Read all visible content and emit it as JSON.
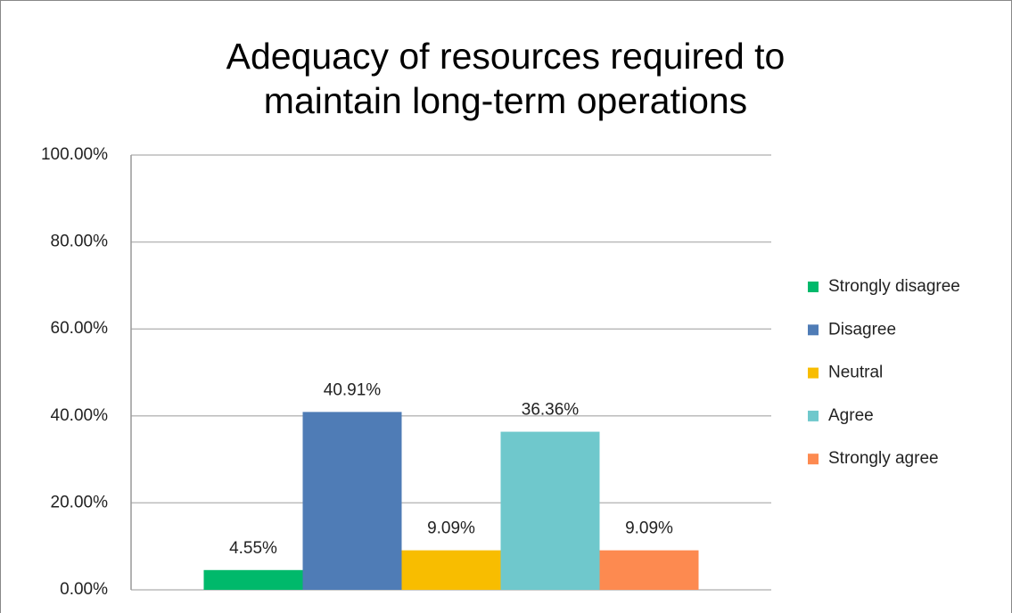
{
  "chart_data": {
    "type": "bar",
    "title": "Adequacy of resources required to maintain long-term operations",
    "categories": [
      null
    ],
    "series": [
      {
        "name": "Strongly disagree",
        "color": "#00b96b",
        "values": [
          4.55
        ],
        "value_labels": [
          "4.55%"
        ]
      },
      {
        "name": "Disagree",
        "color": "#4f7cb6",
        "values": [
          40.91
        ],
        "value_labels": [
          "40.91%"
        ]
      },
      {
        "name": "Neutral",
        "color": "#f8bd00",
        "values": [
          9.09
        ],
        "value_labels": [
          "9.09%"
        ]
      },
      {
        "name": "Agree",
        "color": "#6fc8cc",
        "values": [
          36.36
        ],
        "value_labels": [
          "36.36%"
        ]
      },
      {
        "name": "Strongly agree",
        "color": "#fd8a50",
        "values": [
          9.09
        ],
        "value_labels": [
          "9.09%"
        ]
      }
    ],
    "ylim": [
      0,
      100
    ],
    "yticks": [
      {
        "value": 0,
        "label": "0.00%"
      },
      {
        "value": 20,
        "label": "20.00%"
      },
      {
        "value": 40,
        "label": "40.00%"
      },
      {
        "value": 60,
        "label": "60.00%"
      },
      {
        "value": 80,
        "label": "80.00%"
      },
      {
        "value": 100,
        "label": "100.00%"
      }
    ],
    "grid": true,
    "legend": "right"
  }
}
